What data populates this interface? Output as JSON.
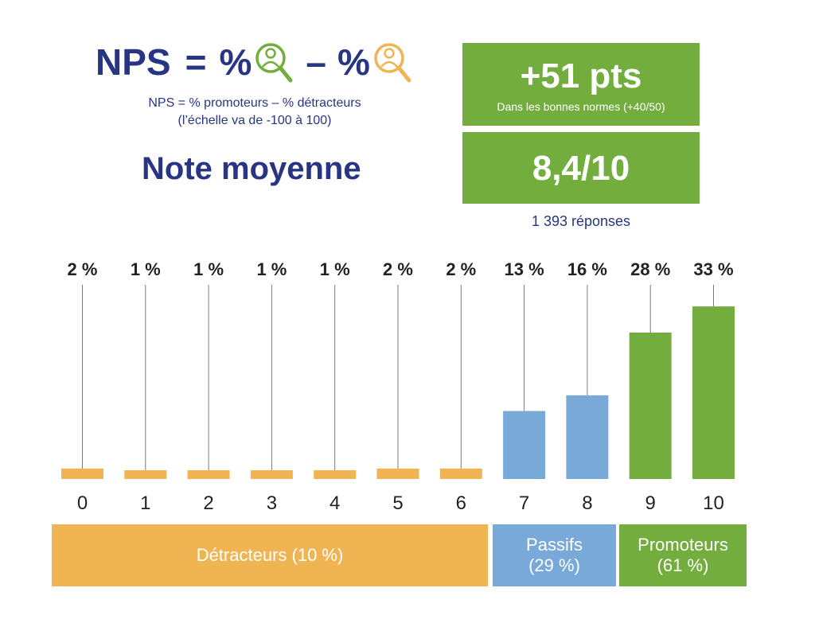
{
  "header": {
    "formula_nps": "NPS",
    "formula_eq": "=",
    "formula_pct1": "%",
    "formula_minus": "–",
    "formula_pct2": "%",
    "subtitle_line1": "NPS  = % promoteurs – % détracteurs",
    "subtitle_line2": "(l’échelle va de -100 à 100)",
    "note_title": "Note moyenne",
    "icons": [
      "promoter-search-icon",
      "detractor-search-icon"
    ]
  },
  "kpis": {
    "nps_value": "+51 pts",
    "nps_caption": "Dans les bonnes normes (+40/50)",
    "mean_value": "8,4/10",
    "responses": "1 393 réponses"
  },
  "colors": {
    "navy": "#283582",
    "detractor": "#f0b552",
    "passive": "#79a9d9",
    "promoter": "#73ad3d"
  },
  "chart_data": {
    "type": "bar",
    "categories": [
      "0",
      "1",
      "2",
      "3",
      "4",
      "5",
      "6",
      "7",
      "8",
      "9",
      "10"
    ],
    "values": [
      2,
      1,
      1,
      1,
      1,
      2,
      2,
      13,
      16,
      28,
      33
    ],
    "value_labels": [
      "2 %",
      "1 %",
      "1 %",
      "1 %",
      "1 %",
      "2 %",
      "2 %",
      "13 %",
      "16 %",
      "28 %",
      "33 %"
    ],
    "bar_groups": [
      "detractor",
      "detractor",
      "detractor",
      "detractor",
      "detractor",
      "detractor",
      "detractor",
      "passive",
      "passive",
      "promoter",
      "promoter"
    ],
    "ylim": [
      0,
      35
    ],
    "groups": [
      {
        "key": "detractor",
        "label_line1": "Détracteurs (10 %)",
        "label_line2": ""
      },
      {
        "key": "passive",
        "label_line1": "Passifs",
        "label_line2": "(29 %)"
      },
      {
        "key": "promoter",
        "label_line1": "Promoteurs",
        "label_line2": "(61 %)"
      }
    ]
  }
}
